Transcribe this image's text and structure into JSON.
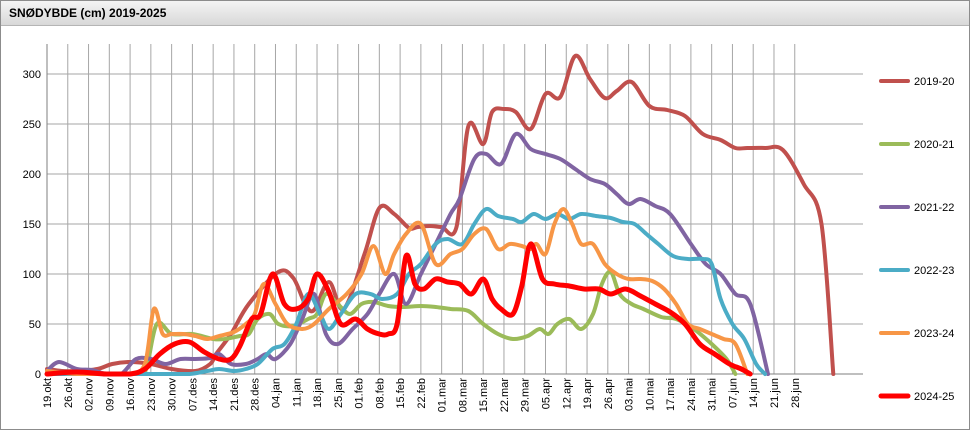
{
  "chart_data": {
    "type": "line",
    "title": "SNØDYBDE (cm) 2019-2025",
    "xlabel": "",
    "ylabel": "",
    "ylim": [
      0,
      330
    ],
    "yticks": [
      0,
      50,
      100,
      150,
      200,
      250,
      300
    ],
    "grid": true,
    "legend_position": "right",
    "x_day_range": [
      0,
      275
    ],
    "categories": [
      "19.okt",
      "26.okt",
      "02.nov",
      "09.nov",
      "16.nov",
      "23.nov",
      "30.nov",
      "07.des",
      "14.des",
      "21.des",
      "28.des",
      "04.jan",
      "11.jan",
      "18.jan",
      "25.jan",
      "01.feb",
      "08.feb",
      "15.feb",
      "22.feb",
      "01.mar",
      "08.mar",
      "15.mar",
      "22.mar",
      "29.mar",
      "05.apr",
      "12.apr",
      "19.apr",
      "26.apr",
      "03.mai",
      "10.mai",
      "17.mai",
      "24.mai",
      "31.mai",
      "07.jun",
      "14.jun",
      "21.jun",
      "28.jun"
    ],
    "series": [
      {
        "name": "2019-20",
        "color": "#c0504d",
        "x": [
          0,
          5,
          10,
          17,
          22,
          28,
          35,
          42,
          50,
          55,
          57,
          62,
          68,
          78,
          83,
          87,
          90,
          95,
          100,
          107,
          112,
          117,
          122,
          125,
          129,
          133,
          138,
          142,
          147,
          150,
          154,
          158,
          163,
          168,
          173,
          178,
          183,
          188,
          192,
          197,
          203,
          209,
          215,
          221,
          227,
          232,
          236,
          242,
          248,
          255,
          261,
          265
        ],
        "y": [
          5,
          3,
          3,
          5,
          10,
          12,
          10,
          5,
          3,
          10,
          20,
          40,
          70,
          102,
          96,
          70,
          64,
          92,
          65,
          120,
          166,
          160,
          146,
          147,
          148,
          147,
          147,
          248,
          230,
          262,
          265,
          262,
          245,
          280,
          277,
          318,
          295,
          276,
          283,
          292,
          268,
          264,
          258,
          240,
          234,
          226,
          226,
          226,
          224,
          190,
          150,
          0
        ]
      },
      {
        "name": "2020-21",
        "color": "#9bbb59",
        "x": [
          0,
          10,
          20,
          28,
          33,
          37,
          42,
          49,
          56,
          60,
          65,
          68,
          71,
          75,
          78,
          83,
          88,
          91,
          94,
          98,
          102,
          106,
          110,
          115,
          120,
          126,
          131,
          136,
          142,
          147,
          152,
          157,
          162,
          166,
          169,
          172,
          176,
          180,
          184,
          187,
          190,
          193,
          197,
          201,
          207,
          212,
          218,
          224,
          229,
          232
        ],
        "y": [
          2,
          0,
          0,
          0,
          2,
          50,
          40,
          40,
          35,
          35,
          38,
          40,
          55,
          60,
          50,
          48,
          55,
          60,
          80,
          70,
          60,
          70,
          72,
          68,
          67,
          68,
          67,
          65,
          63,
          50,
          40,
          35,
          38,
          45,
          40,
          50,
          55,
          45,
          60,
          90,
          102,
          80,
          70,
          65,
          57,
          55,
          45,
          30,
          15,
          0
        ]
      },
      {
        "name": "2021-22",
        "color": "#8064a2",
        "x": [
          0,
          4,
          10,
          15,
          20,
          25,
          30,
          35,
          40,
          45,
          50,
          55,
          58,
          62,
          67,
          71,
          74,
          77,
          82,
          86,
          90,
          94,
          98,
          103,
          108,
          112,
          117,
          121,
          126,
          131,
          136,
          139,
          144,
          148,
          153,
          158,
          163,
          168,
          173,
          178,
          183,
          188,
          192,
          196,
          200,
          205,
          210,
          217,
          222,
          227,
          232,
          237,
          243
        ],
        "y": [
          3,
          12,
          5,
          4,
          0,
          0,
          15,
          15,
          10,
          15,
          15,
          16,
          20,
          10,
          10,
          15,
          20,
          15,
          30,
          55,
          80,
          40,
          30,
          45,
          60,
          80,
          100,
          70,
          100,
          130,
          160,
          175,
          215,
          220,
          210,
          240,
          225,
          220,
          215,
          205,
          195,
          190,
          180,
          170,
          175,
          168,
          160,
          130,
          110,
          100,
          80,
          70,
          0
        ]
      },
      {
        "name": "2022-23",
        "color": "#4bacc6",
        "x": [
          0,
          10,
          20,
          30,
          40,
          48,
          54,
          58,
          63,
          67,
          71,
          76,
          80,
          84,
          88,
          92,
          95,
          99,
          104,
          109,
          113,
          118,
          122,
          126,
          131,
          135,
          140,
          144,
          148,
          152,
          157,
          160,
          164,
          168,
          172,
          176,
          180,
          185,
          190,
          194,
          198,
          202,
          206,
          211,
          216,
          221,
          224,
          227,
          231,
          235,
          239,
          242
        ],
        "y": [
          0,
          0,
          0,
          0,
          0,
          0,
          3,
          5,
          3,
          5,
          10,
          25,
          30,
          50,
          80,
          60,
          45,
          60,
          80,
          80,
          75,
          80,
          100,
          110,
          130,
          135,
          130,
          150,
          165,
          158,
          155,
          152,
          160,
          155,
          160,
          155,
          160,
          158,
          156,
          152,
          150,
          140,
          130,
          118,
          115,
          115,
          110,
          75,
          50,
          35,
          10,
          0
        ]
      },
      {
        "name": "2023-24",
        "color": "#f79646",
        "x": [
          0,
          10,
          20,
          28,
          33,
          36,
          39,
          42,
          46,
          50,
          54,
          58,
          63,
          67,
          70,
          73,
          77,
          81,
          86,
          90,
          95,
          101,
          106,
          110,
          114,
          117,
          121,
          126,
          131,
          136,
          140,
          144,
          148,
          152,
          156,
          160,
          163,
          165,
          168,
          171,
          174,
          177,
          180,
          184,
          188,
          192,
          196,
          200,
          204,
          208,
          212,
          216,
          220,
          224,
          228,
          232,
          236
        ],
        "y": [
          3,
          0,
          0,
          0,
          10,
          65,
          40,
          40,
          40,
          38,
          35,
          38,
          42,
          50,
          60,
          90,
          70,
          50,
          45,
          50,
          65,
          80,
          100,
          128,
          100,
          120,
          140,
          150,
          110,
          120,
          125,
          140,
          145,
          125,
          130,
          128,
          125,
          130,
          120,
          150,
          165,
          150,
          130,
          130,
          110,
          100,
          95,
          95,
          93,
          85,
          70,
          50,
          45,
          40,
          35,
          30,
          0
        ]
      },
      {
        "name": "2024-25",
        "color": "#ff0000",
        "x": [
          0,
          10,
          20,
          28,
          33,
          38,
          43,
          48,
          53,
          58,
          62,
          65,
          69,
          72,
          76,
          80,
          84,
          88,
          91,
          95,
          99,
          104,
          108,
          112,
          115,
          118,
          121,
          124,
          127,
          131,
          135,
          139,
          143,
          147,
          150,
          153,
          157,
          160,
          163,
          167,
          171,
          176,
          181,
          186,
          190,
          195,
          200,
          205,
          210,
          215,
          220,
          225,
          230,
          234,
          237
        ],
        "y": [
          0,
          2,
          0,
          0,
          5,
          20,
          30,
          32,
          22,
          15,
          15,
          28,
          55,
          60,
          100,
          70,
          65,
          75,
          100,
          82,
          50,
          55,
          45,
          40,
          40,
          50,
          118,
          90,
          85,
          95,
          92,
          90,
          80,
          95,
          75,
          65,
          60,
          88,
          130,
          95,
          90,
          88,
          85,
          85,
          80,
          85,
          78,
          70,
          62,
          50,
          30,
          20,
          10,
          5,
          0
        ]
      }
    ]
  }
}
